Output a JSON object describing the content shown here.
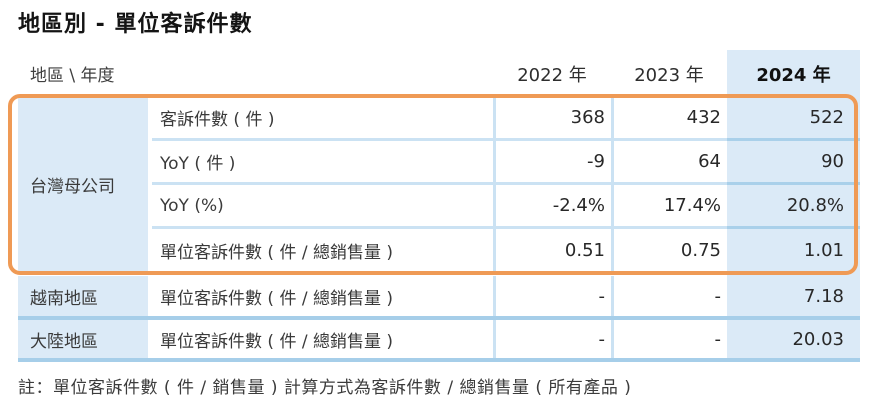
{
  "title": "地區別 - 單位客訴件數",
  "colors": {
    "highlight_column_bg": "#dbeaf7",
    "region_cell_bg": "#dbeaf7",
    "grid_line": "#cbe2f3",
    "thick_line": "#a6cee9",
    "accent_box_border": "#ef9a55"
  },
  "table": {
    "header": {
      "corner": "地區 \\ 年度",
      "years": [
        "2022 年",
        "2023 年",
        "2024 年"
      ],
      "highlighted_year": "2024 年"
    },
    "groups": [
      {
        "region": "台灣母公司",
        "highlighted": true,
        "rows": [
          {
            "label": "客訴件數 ( 件 )",
            "values": [
              "368",
              "432",
              "522"
            ]
          },
          {
            "label": "YoY ( 件 )",
            "values": [
              "-9",
              "64",
              "90"
            ]
          },
          {
            "label": "YoY (%)",
            "values": [
              "-2.4%",
              "17.4%",
              "20.8%"
            ]
          },
          {
            "label": "單位客訴件數 ( 件 / 總銷售量 )",
            "values": [
              "0.51",
              "0.75",
              "1.01"
            ]
          }
        ]
      },
      {
        "region": "越南地區",
        "highlighted": false,
        "rows": [
          {
            "label": "單位客訴件數 ( 件 / 總銷售量 )",
            "values": [
              "-",
              "-",
              "7.18"
            ]
          }
        ]
      },
      {
        "region": "大陸地區",
        "highlighted": false,
        "rows": [
          {
            "label": "單位客訴件數 ( 件 / 總銷售量 )",
            "values": [
              "-",
              "-",
              "20.03"
            ]
          }
        ]
      }
    ]
  },
  "note": "註：單位客訴件數 ( 件 / 銷售量 ) 計算方式為客訴件數 / 總銷售量 ( 所有產品 )"
}
